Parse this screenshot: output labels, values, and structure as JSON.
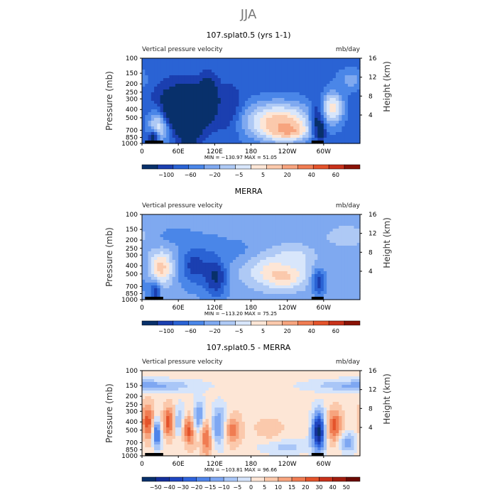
{
  "main_title": "JJA",
  "chart_data": [
    {
      "type": "heatmap",
      "title": "107.splat0.5 (yrs 1-1)",
      "left_label": "Vertical pressure velocity",
      "right_label": "mb/day",
      "ylabel": "Pressure (mb)",
      "ylabel_right": "Height (km)",
      "pressure_ticks": [
        "100",
        "150",
        "200",
        "250",
        "300",
        "400",
        "500",
        "700",
        "850",
        "1000"
      ],
      "height_ticks": [
        "16",
        "12",
        "8",
        "4"
      ],
      "x_ticks": [
        "0",
        "60E",
        "120E",
        "180",
        "120W",
        "60W"
      ],
      "min_max_text": "MIN = −130.97   MAX =  51.05",
      "colorbar_labels": [
        "−100",
        "−60",
        "−20",
        "−5",
        "5",
        "20",
        "40",
        "60"
      ],
      "field": {
        "bg": 2,
        "blobs": [
          {
            "lon": 28,
            "pres": 600,
            "w": 12,
            "h": 3.2,
            "v": 8
          },
          {
            "lon": 18,
            "pres": 870,
            "w": 7,
            "h": 1.6,
            "v": 0
          },
          {
            "lon": 70,
            "pres": 380,
            "w": 30,
            "h": 4.2,
            "v": -3
          },
          {
            "lon": 78,
            "pres": 650,
            "w": 10,
            "h": 2.5,
            "v": -5
          },
          {
            "lon": 110,
            "pres": 300,
            "w": 9,
            "h": 3.5,
            "v": -3
          },
          {
            "lon": 145,
            "pres": 420,
            "w": 16,
            "h": 4.2,
            "v": 0
          },
          {
            "lon": 225,
            "pres": 550,
            "w": 40,
            "h": 3.6,
            "v": 8
          },
          {
            "lon": 240,
            "pres": 700,
            "w": 22,
            "h": 1.8,
            "v": 9
          },
          {
            "lon": 290,
            "pres": 520,
            "w": 8,
            "h": 3.8,
            "v": 0
          },
          {
            "lon": 296,
            "pres": 700,
            "w": 5,
            "h": 2.0,
            "v": -1
          },
          {
            "lon": 315,
            "pres": 380,
            "w": 12,
            "h": 3.0,
            "v": 7
          },
          {
            "lon": 345,
            "pres": 180,
            "w": 15,
            "h": 2.2,
            "v": 4
          }
        ]
      }
    },
    {
      "type": "heatmap",
      "title": "MERRA",
      "left_label": "Vertical pressure velocity",
      "right_label": "mb/day",
      "ylabel": "Pressure (mb)",
      "ylabel_right": "Height (km)",
      "pressure_ticks": [
        "100",
        "150",
        "200",
        "250",
        "300",
        "400",
        "500",
        "700",
        "850",
        "1000"
      ],
      "height_ticks": [
        "16",
        "12",
        "8",
        "4"
      ],
      "x_ticks": [
        "0",
        "60E",
        "120E",
        "180",
        "120W",
        "60W"
      ],
      "min_max_text": "MIN = −113.20   MAX =  75.25",
      "colorbar_labels": [
        "−100",
        "−60",
        "−20",
        "−5",
        "5",
        "20",
        "40",
        "60"
      ],
      "field": {
        "bg": 4,
        "blobs": [
          {
            "lon": 35,
            "pres": 180,
            "w": 40,
            "h": 2.0,
            "v": 3
          },
          {
            "lon": 10,
            "pres": 600,
            "w": 10,
            "h": 3.5,
            "v": 3
          },
          {
            "lon": 32,
            "pres": 420,
            "w": 14,
            "h": 3.0,
            "v": 8
          },
          {
            "lon": 22,
            "pres": 820,
            "w": 6,
            "h": 1.8,
            "v": 1
          },
          {
            "lon": 88,
            "pres": 400,
            "w": 18,
            "h": 4.0,
            "v": 1
          },
          {
            "lon": 122,
            "pres": 500,
            "w": 14,
            "h": 4.5,
            "v": 0
          },
          {
            "lon": 155,
            "pres": 280,
            "w": 28,
            "h": 2.8,
            "v": 3
          },
          {
            "lon": 225,
            "pres": 460,
            "w": 38,
            "h": 3.2,
            "v": 7
          },
          {
            "lon": 232,
            "pres": 520,
            "w": 18,
            "h": 2.0,
            "v": 8
          },
          {
            "lon": 250,
            "pres": 320,
            "w": 20,
            "h": 2.2,
            "v": 6
          },
          {
            "lon": 292,
            "pres": 620,
            "w": 8,
            "h": 2.6,
            "v": 1
          },
          {
            "lon": 340,
            "pres": 180,
            "w": 30,
            "h": 2.5,
            "v": 5
          }
        ]
      }
    },
    {
      "type": "heatmap",
      "title": "107.splat0.5 - MERRA",
      "left_label": "Vertical pressure velocity",
      "right_label": "mb/day",
      "ylabel": "Pressure (mb)",
      "ylabel_right": "Height (km)",
      "pressure_ticks": [
        "100",
        "150",
        "200",
        "250",
        "300",
        "400",
        "500",
        "700",
        "850",
        "1000"
      ],
      "height_ticks": [
        "16",
        "12",
        "8",
        "4"
      ],
      "x_ticks": [
        "0",
        "60E",
        "120E",
        "180",
        "120W",
        "60W"
      ],
      "min_max_text": "MIN = −103.81   MAX =  96.66",
      "colorbar_labels": [
        "−50",
        "−40",
        "−30",
        "−20",
        "−15",
        "−10",
        "−5",
        "0",
        "5",
        "10",
        "15",
        "20",
        "30",
        "40",
        "50"
      ],
      "field": {
        "bg": 8,
        "blobs": [
          {
            "lon": 5,
            "pres": 150,
            "w": 60,
            "h": 1.2,
            "v": 5
          },
          {
            "lon": 10,
            "pres": 400,
            "w": 8,
            "h": 3.5,
            "v": 12
          },
          {
            "lon": 25,
            "pres": 550,
            "w": 5,
            "h": 3.0,
            "v": 3
          },
          {
            "lon": 48,
            "pres": 400,
            "w": 9,
            "h": 3.0,
            "v": 13
          },
          {
            "lon": 62,
            "pres": 400,
            "w": 8,
            "h": 3.4,
            "v": 5
          },
          {
            "lon": 78,
            "pres": 500,
            "w": 8,
            "h": 3.0,
            "v": 12
          },
          {
            "lon": 95,
            "pres": 350,
            "w": 7,
            "h": 3.2,
            "v": 4
          },
          {
            "lon": 108,
            "pres": 600,
            "w": 8,
            "h": 3.5,
            "v": 12
          },
          {
            "lon": 128,
            "pres": 450,
            "w": 10,
            "h": 3.8,
            "v": 4
          },
          {
            "lon": 150,
            "pres": 500,
            "w": 10,
            "h": 3.0,
            "v": 11
          },
          {
            "lon": 235,
            "pres": 780,
            "w": 30,
            "h": 1.5,
            "v": 6
          },
          {
            "lon": 210,
            "pres": 480,
            "w": 20,
            "h": 2.5,
            "v": 9
          },
          {
            "lon": 292,
            "pres": 520,
            "w": 8,
            "h": 3.8,
            "v": 0
          },
          {
            "lon": 318,
            "pres": 450,
            "w": 9,
            "h": 3.2,
            "v": 12
          },
          {
            "lon": 340,
            "pres": 700,
            "w": 10,
            "h": 2.0,
            "v": 5
          }
        ]
      }
    }
  ]
}
